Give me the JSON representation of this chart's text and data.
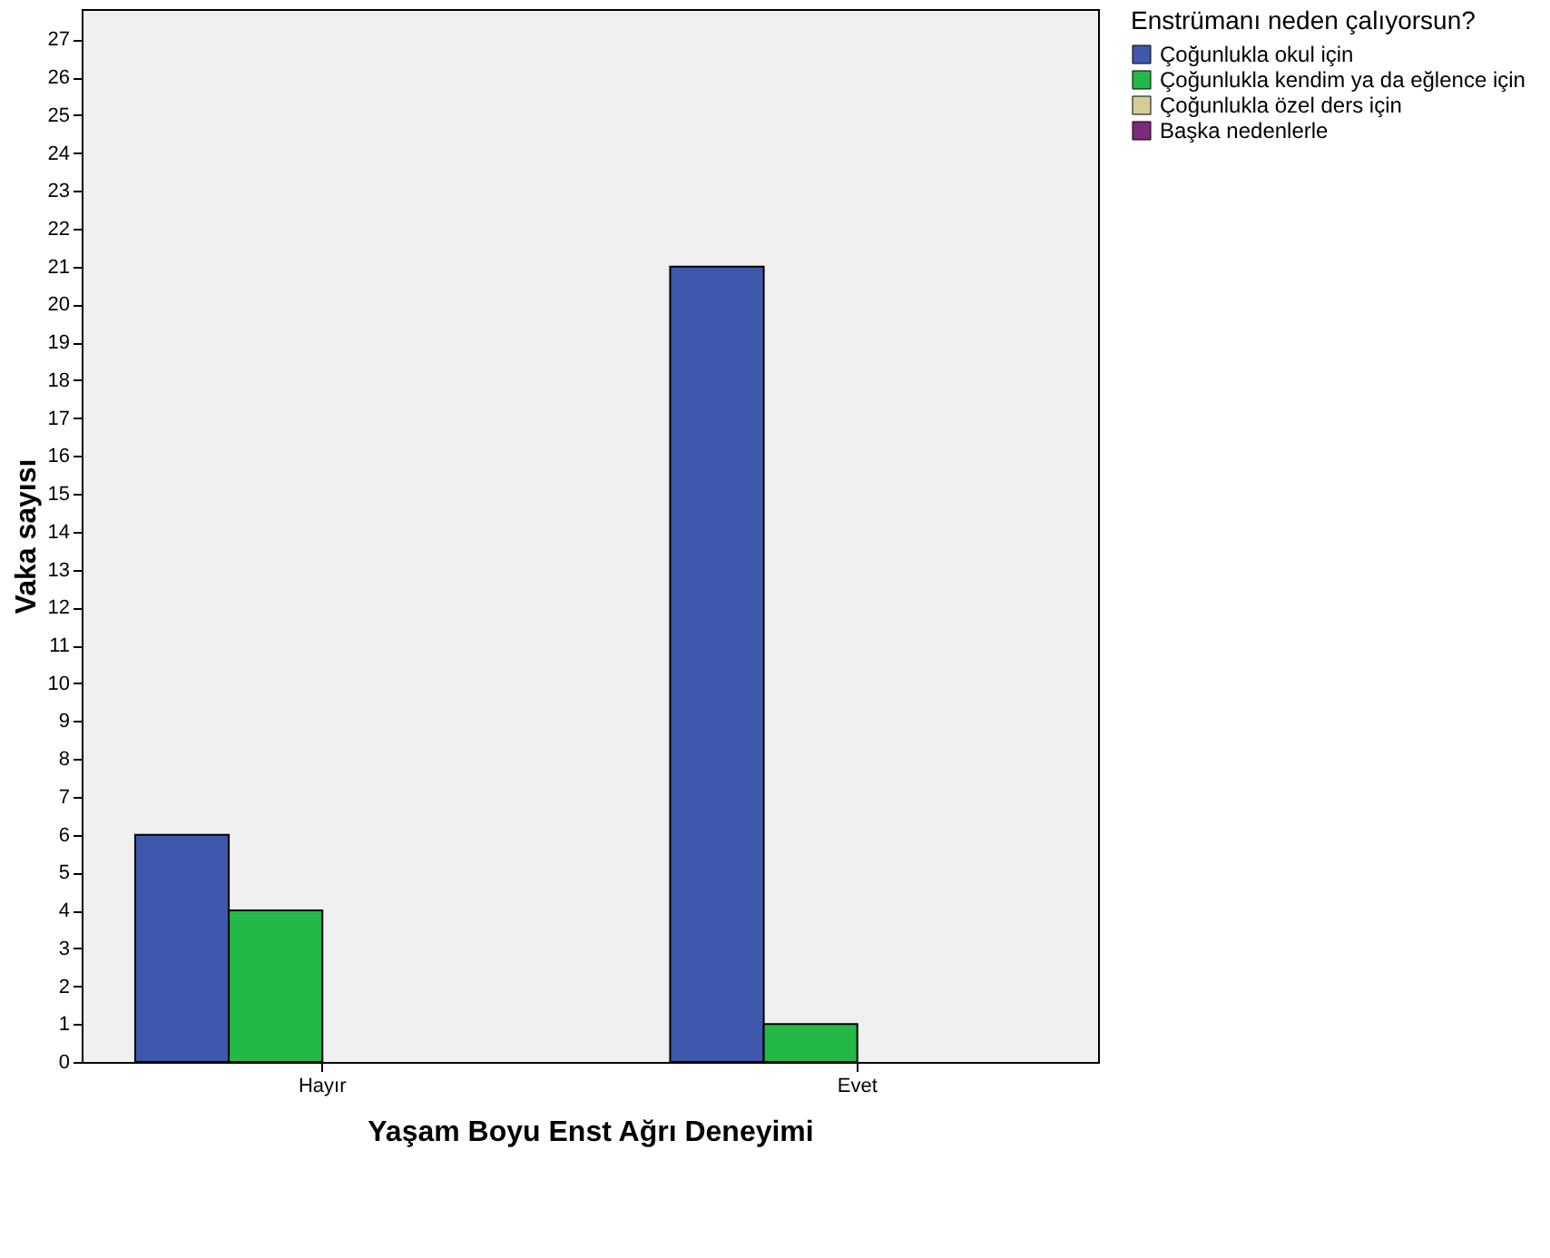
{
  "chart_data": {
    "type": "bar",
    "xlabel": "Yaşam Boyu Enst Ağrı Deneyimi",
    "ylabel": "Vaka sayısı",
    "legend_title": "Enstrümanı neden çalıyorsun?",
    "categories": [
      "Hayır",
      "Evet"
    ],
    "series": [
      {
        "name": "Çoğunlukla okul için",
        "color": "#3e58ac",
        "values": [
          6,
          21
        ]
      },
      {
        "name": "Çoğunlukla kendim ya da eğlence için",
        "color": "#23b847",
        "values": [
          4,
          1
        ]
      },
      {
        "name": "Çoğunlukla özel ders için",
        "color": "#d3ce97",
        "values": [
          0,
          0
        ]
      },
      {
        "name": "Başka nedenlerle",
        "color": "#7d2a7c",
        "values": [
          0,
          0
        ]
      }
    ],
    "ylim": [
      0,
      27.8
    ],
    "yticks": [
      0,
      1,
      2,
      3,
      4,
      5,
      6,
      7,
      8,
      9,
      10,
      11,
      12,
      13,
      14,
      15,
      16,
      17,
      18,
      19,
      20,
      21,
      22,
      23,
      24,
      25,
      26,
      27
    ],
    "grid": false,
    "legend": "top right"
  }
}
